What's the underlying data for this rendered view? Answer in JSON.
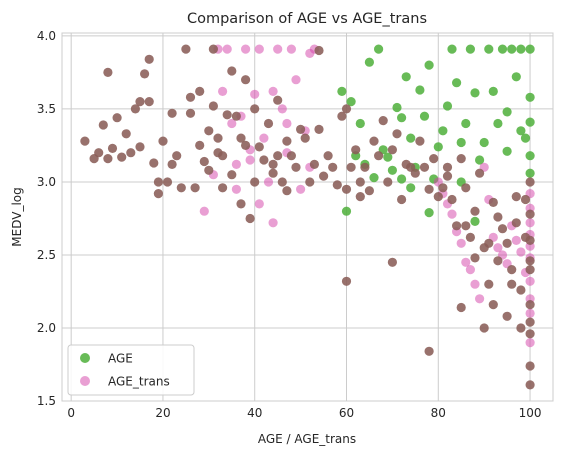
{
  "chart_data": {
    "type": "scatter",
    "title": "Comparison of AGE vs AGE_trans",
    "xlabel": "AGE / AGE_trans",
    "ylabel": "MEDV_log",
    "xlim": [
      -2,
      105
    ],
    "ylim": [
      1.5,
      4.02
    ],
    "xticks": [
      0,
      20,
      40,
      60,
      80,
      100
    ],
    "yticks": [
      1.5,
      2.0,
      2.5,
      3.0,
      3.5,
      4.0
    ],
    "xtick_labels": [
      "0",
      "20",
      "40",
      "60",
      "80",
      "100"
    ],
    "ytick_labels": [
      "1.5",
      "2.0",
      "2.5",
      "3.0",
      "3.5",
      "4.0"
    ],
    "grid": true,
    "legend_position": "lower-left",
    "series": [
      {
        "name": "AGE",
        "color": "#4daf3a",
        "points": [
          [
            59,
            3.62
          ],
          [
            61,
            3.55
          ],
          [
            62,
            3.18
          ],
          [
            63,
            3.4
          ],
          [
            64,
            3.12
          ],
          [
            65,
            3.82
          ],
          [
            66,
            3.03
          ],
          [
            67,
            3.91
          ],
          [
            68,
            3.22
          ],
          [
            69,
            3.17
          ],
          [
            70,
            3.08
          ],
          [
            71,
            3.51
          ],
          [
            72,
            3.44
          ],
          [
            73,
            3.72
          ],
          [
            74,
            3.3
          ],
          [
            75,
            3.1
          ],
          [
            76,
            3.63
          ],
          [
            77,
            3.45
          ],
          [
            78,
            3.8
          ],
          [
            79,
            3.02
          ],
          [
            80,
            3.24
          ],
          [
            81,
            3.35
          ],
          [
            82,
            3.52
          ],
          [
            83,
            3.91
          ],
          [
            84,
            3.68
          ],
          [
            85,
            3.27
          ],
          [
            86,
            3.4
          ],
          [
            87,
            3.91
          ],
          [
            88,
            3.61
          ],
          [
            89,
            3.15
          ],
          [
            90,
            3.27
          ],
          [
            91,
            3.91
          ],
          [
            92,
            3.62
          ],
          [
            93,
            3.4
          ],
          [
            94,
            3.91
          ],
          [
            95,
            3.21
          ],
          [
            96,
            3.91
          ],
          [
            97,
            3.72
          ],
          [
            98,
            3.91
          ],
          [
            99,
            3.3
          ],
          [
            100,
            3.91
          ],
          [
            100,
            3.41
          ],
          [
            100,
            3.58
          ],
          [
            100,
            3.18
          ],
          [
            100,
            3.06
          ],
          [
            60,
            2.8
          ],
          [
            74,
            2.96
          ],
          [
            78,
            2.79
          ],
          [
            88,
            2.73
          ],
          [
            85,
            3.0
          ],
          [
            72,
            3.02
          ],
          [
            95,
            3.48
          ],
          [
            98,
            3.35
          ]
        ]
      },
      {
        "name": "AGE_trans",
        "color": "#d43fa7",
        "points": [
          [
            29,
            2.8
          ],
          [
            31,
            3.05
          ],
          [
            32,
            3.91
          ],
          [
            33,
            3.62
          ],
          [
            34,
            3.91
          ],
          [
            35,
            3.4
          ],
          [
            36,
            3.12
          ],
          [
            37,
            3.45
          ],
          [
            38,
            3.91
          ],
          [
            39,
            3.22
          ],
          [
            40,
            3.6
          ],
          [
            41,
            3.91
          ],
          [
            42,
            3.3
          ],
          [
            43,
            3.0
          ],
          [
            44,
            2.72
          ],
          [
            45,
            3.91
          ],
          [
            46,
            3.5
          ],
          [
            47,
            3.2
          ],
          [
            48,
            3.91
          ],
          [
            49,
            3.7
          ],
          [
            50,
            2.95
          ],
          [
            51,
            3.35
          ],
          [
            52,
            3.1
          ],
          [
            53,
            3.91
          ],
          [
            41,
            2.85
          ],
          [
            44,
            3.62
          ],
          [
            47,
            3.4
          ],
          [
            36,
            2.95
          ],
          [
            39,
            3.15
          ],
          [
            52,
            3.88
          ],
          [
            80,
            3.0
          ],
          [
            81,
            2.92
          ],
          [
            82,
            2.85
          ],
          [
            83,
            2.78
          ],
          [
            84,
            2.66
          ],
          [
            85,
            2.58
          ],
          [
            86,
            2.45
          ],
          [
            87,
            2.4
          ],
          [
            88,
            2.3
          ],
          [
            89,
            2.2
          ],
          [
            90,
            3.1
          ],
          [
            91,
            2.88
          ],
          [
            92,
            2.62
          ],
          [
            93,
            2.55
          ],
          [
            94,
            2.5
          ],
          [
            95,
            2.44
          ],
          [
            96,
            2.7
          ],
          [
            97,
            2.6
          ],
          [
            98,
            2.52
          ],
          [
            99,
            2.38
          ],
          [
            100,
            2.48
          ],
          [
            100,
            2.64
          ],
          [
            100,
            2.72
          ],
          [
            100,
            2.56
          ],
          [
            100,
            2.82
          ],
          [
            100,
            2.32
          ],
          [
            100,
            2.2
          ],
          [
            100,
            1.9
          ],
          [
            100,
            2.1
          ],
          [
            100,
            2.92
          ]
        ]
      },
      {
        "name": "",
        "color": "#8a5d58",
        "points": [
          [
            3,
            3.28
          ],
          [
            6,
            3.2
          ],
          [
            7,
            3.39
          ],
          [
            8,
            3.16
          ],
          [
            8,
            3.75
          ],
          [
            9,
            3.23
          ],
          [
            10,
            3.44
          ],
          [
            11,
            3.17
          ],
          [
            12,
            3.33
          ],
          [
            13,
            3.2
          ],
          [
            14,
            3.5
          ],
          [
            15,
            3.24
          ],
          [
            16,
            3.74
          ],
          [
            17,
            3.55
          ],
          [
            17,
            3.84
          ],
          [
            18,
            3.13
          ],
          [
            19,
            3.0
          ],
          [
            19,
            2.92
          ],
          [
            20,
            3.28
          ],
          [
            21,
            3.0
          ],
          [
            22,
            3.47
          ],
          [
            23,
            3.18
          ],
          [
            24,
            2.96
          ],
          [
            25,
            3.91
          ],
          [
            26,
            3.47
          ],
          [
            27,
            2.96
          ],
          [
            28,
            3.25
          ],
          [
            28,
            3.62
          ],
          [
            29,
            3.14
          ],
          [
            30,
            3.35
          ],
          [
            30,
            3.08
          ],
          [
            31,
            3.91
          ],
          [
            31,
            3.52
          ],
          [
            32,
            3.3
          ],
          [
            33,
            3.18
          ],
          [
            33,
            2.96
          ],
          [
            34,
            3.46
          ],
          [
            35,
            3.76
          ],
          [
            35,
            3.05
          ],
          [
            36,
            3.45
          ],
          [
            37,
            3.3
          ],
          [
            37,
            2.85
          ],
          [
            38,
            3.7
          ],
          [
            38,
            3.25
          ],
          [
            39,
            2.75
          ],
          [
            40,
            3.0
          ],
          [
            40,
            3.5
          ],
          [
            41,
            3.24
          ],
          [
            42,
            3.15
          ],
          [
            43,
            3.4
          ],
          [
            44,
            3.06
          ],
          [
            45,
            3.56
          ],
          [
            45,
            3.18
          ],
          [
            46,
            3.0
          ],
          [
            47,
            3.28
          ],
          [
            47,
            2.94
          ],
          [
            48,
            3.18
          ],
          [
            49,
            3.1
          ],
          [
            50,
            3.36
          ],
          [
            51,
            3.3
          ],
          [
            52,
            3.0
          ],
          [
            53,
            3.12
          ],
          [
            54,
            3.36
          ],
          [
            55,
            3.04
          ],
          [
            56,
            3.18
          ],
          [
            57,
            3.1
          ],
          [
            58,
            2.98
          ],
          [
            59,
            3.45
          ],
          [
            60,
            3.5
          ],
          [
            60,
            2.95
          ],
          [
            61,
            3.1
          ],
          [
            62,
            3.22
          ],
          [
            63,
            2.9
          ],
          [
            64,
            3.1
          ],
          [
            65,
            2.94
          ],
          [
            66,
            3.28
          ],
          [
            67,
            3.18
          ],
          [
            68,
            3.42
          ],
          [
            69,
            3.0
          ],
          [
            70,
            3.22
          ],
          [
            71,
            3.33
          ],
          [
            72,
            2.88
          ],
          [
            73,
            3.12
          ],
          [
            74,
            3.1
          ],
          [
            75,
            3.06
          ],
          [
            76,
            3.28
          ],
          [
            77,
            3.1
          ],
          [
            78,
            2.95
          ],
          [
            79,
            3.16
          ],
          [
            80,
            2.9
          ],
          [
            81,
            2.96
          ],
          [
            82,
            3.04
          ],
          [
            83,
            2.88
          ],
          [
            84,
            2.7
          ],
          [
            85,
            3.16
          ],
          [
            86,
            2.96
          ],
          [
            87,
            2.62
          ],
          [
            88,
            2.8
          ],
          [
            89,
            3.06
          ],
          [
            90,
            2.55
          ],
          [
            91,
            2.3
          ],
          [
            92,
            2.86
          ],
          [
            93,
            2.46
          ],
          [
            94,
            2.68
          ],
          [
            95,
            2.58
          ],
          [
            96,
            2.4
          ],
          [
            97,
            2.9
          ],
          [
            98,
            2.26
          ],
          [
            99,
            2.62
          ],
          [
            100,
            2.6
          ],
          [
            100,
            2.4
          ],
          [
            100,
            2.16
          ],
          [
            100,
            1.96
          ],
          [
            100,
            1.74
          ],
          [
            100,
            1.61
          ],
          [
            100,
            2.78
          ],
          [
            100,
            3.0
          ],
          [
            100,
            2.46
          ],
          [
            100,
            2.04
          ],
          [
            78,
            1.84
          ],
          [
            70,
            2.45
          ],
          [
            60,
            2.32
          ],
          [
            90,
            2.0
          ],
          [
            85,
            2.14
          ],
          [
            95,
            2.08
          ],
          [
            92,
            2.16
          ],
          [
            88,
            2.48
          ],
          [
            96,
            2.3
          ],
          [
            98,
            2.0
          ],
          [
            15,
            3.55
          ],
          [
            5,
            3.16
          ],
          [
            22,
            3.12
          ],
          [
            26,
            3.58
          ],
          [
            44,
            3.12
          ],
          [
            32,
            3.2
          ],
          [
            54,
            3.9
          ],
          [
            63,
            3.0
          ],
          [
            82,
            3.1
          ],
          [
            99,
            2.88
          ],
          [
            97,
            2.72
          ],
          [
            93,
            2.76
          ],
          [
            86,
            2.7
          ],
          [
            91,
            2.58
          ]
        ]
      }
    ]
  }
}
